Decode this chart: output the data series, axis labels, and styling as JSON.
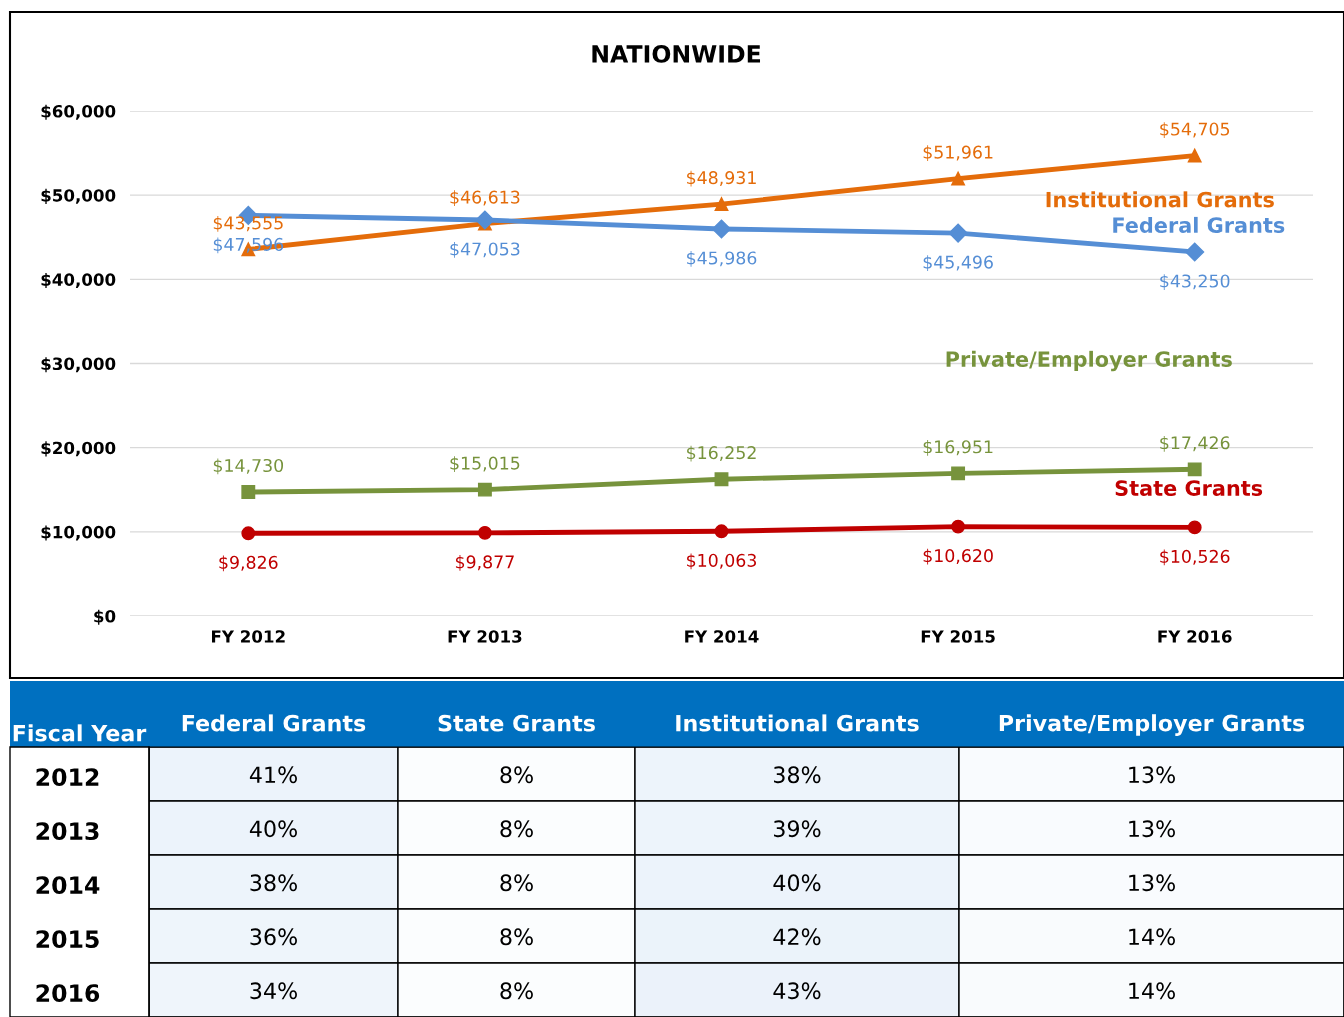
{
  "chart_data": [
    {
      "type": "line",
      "title": "NATIONWIDE",
      "categories": [
        "FY 2012",
        "FY 2013",
        "FY 2014",
        "FY 2015",
        "FY 2016"
      ],
      "series": [
        {
          "name": "Institutional Grants",
          "color": "#e46c0a",
          "marker": "triangle",
          "values": [
            43555,
            46613,
            48931,
            51961,
            54705
          ],
          "value_labels": [
            "$43,555",
            "$46,613",
            "$48,931",
            "$51,961",
            "$54,705"
          ]
        },
        {
          "name": "Federal Grants",
          "color": "#558ed5",
          "marker": "diamond",
          "values": [
            47596,
            47053,
            45986,
            45496,
            43250
          ],
          "value_labels": [
            "$47,596",
            "$47,053",
            "$45,986",
            "$45,496",
            "$43,250"
          ]
        },
        {
          "name": "Private/Employer Grants",
          "color": "#77933c",
          "marker": "square",
          "values": [
            14730,
            15015,
            16252,
            16951,
            17426
          ],
          "value_labels": [
            "$14,730",
            "$15,015",
            "$16,252",
            "$16,951",
            "$17,426"
          ]
        },
        {
          "name": "State Grants",
          "color": "#c00000",
          "marker": "circle",
          "values": [
            9826,
            9877,
            10063,
            10620,
            10526
          ],
          "value_labels": [
            "$9,826",
            "$9,877",
            "$10,063",
            "$10,620",
            "$10,526"
          ]
        }
      ],
      "ylim": [
        0,
        60000
      ],
      "yticks": [
        {
          "value": 0,
          "label": "$0"
        },
        {
          "value": 10000,
          "label": "$10,000"
        },
        {
          "value": 20000,
          "label": "$20,000"
        },
        {
          "value": 30000,
          "label": "$30,000"
        },
        {
          "value": 40000,
          "label": "$40,000"
        },
        {
          "value": 50000,
          "label": "$50,000"
        },
        {
          "value": 60000,
          "label": "$60,000"
        }
      ],
      "grid": "y",
      "legend": false,
      "line_style": "solid"
    },
    {
      "type": "heatmap",
      "ylabel": "Fiscal Year",
      "categories": [
        "Federal Grants",
        "State Grants",
        "Institutional Grants",
        "Private/Employer Grants"
      ],
      "y_categories": [
        "2012",
        "2013",
        "2014",
        "2015",
        "2016"
      ],
      "cells": [
        [
          41,
          8,
          38,
          13
        ],
        [
          40,
          8,
          39,
          13
        ],
        [
          38,
          8,
          40,
          13
        ],
        [
          36,
          8,
          42,
          14
        ],
        [
          34,
          8,
          43,
          14
        ]
      ],
      "cell_labels": [
        [
          "41%",
          "8%",
          "38%",
          "13%"
        ],
        [
          "40%",
          "8%",
          "39%",
          "13%"
        ],
        [
          "38%",
          "8%",
          "40%",
          "13%"
        ],
        [
          "36%",
          "8%",
          "42%",
          "14%"
        ],
        [
          "34%",
          "8%",
          "43%",
          "14%"
        ]
      ]
    }
  ]
}
